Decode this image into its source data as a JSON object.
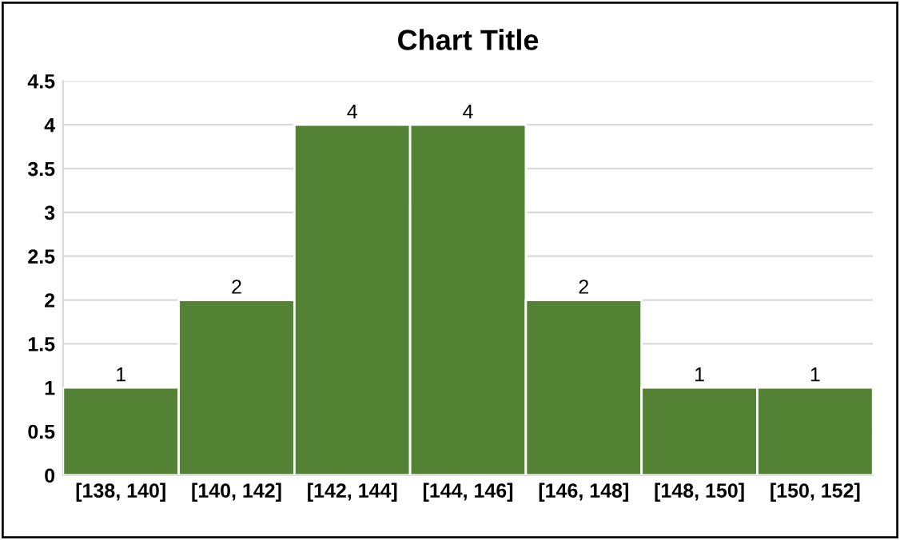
{
  "chart_data": {
    "type": "bar",
    "title": "Chart Title",
    "categories": [
      "[138, 140]",
      "[140, 142]",
      "[142, 144]",
      "[144, 146]",
      "[146, 148]",
      "[148, 150]",
      "[150, 152]"
    ],
    "values": [
      1,
      2,
      4,
      4,
      2,
      1,
      1
    ],
    "color": "#548235",
    "ylim": [
      0,
      4.5
    ],
    "yticks": [
      0,
      0.5,
      1,
      1.5,
      2,
      2.5,
      3,
      3.5,
      4,
      4.5
    ],
    "grid": "y",
    "data_labels": true
  }
}
